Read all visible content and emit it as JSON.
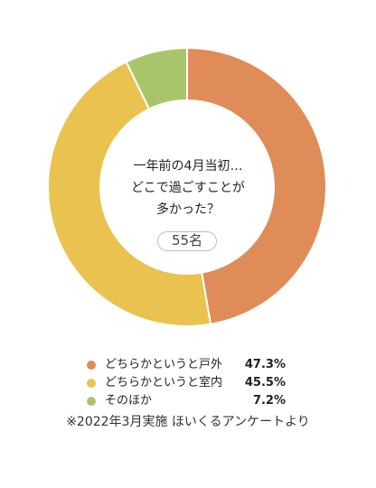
{
  "chart_data": {
    "type": "pie",
    "title": "",
    "center_question": [
      "一年前の4月当初…",
      "どこで過ごすことが",
      "多かった？"
    ],
    "respondents": "55名",
    "categories": [
      "どちらかというと戸外",
      "どちらかというと室内",
      "そのほか"
    ],
    "values": [
      47.3,
      45.5,
      7.2
    ],
    "value_labels": [
      "47.3%",
      "45.5%",
      "7.2%"
    ],
    "colors": [
      "#df8c58",
      "#e9c24f",
      "#a9c56a"
    ],
    "legend": "bottom"
  },
  "footnote": "※2022年3月実施 ほいくるアンケートより"
}
